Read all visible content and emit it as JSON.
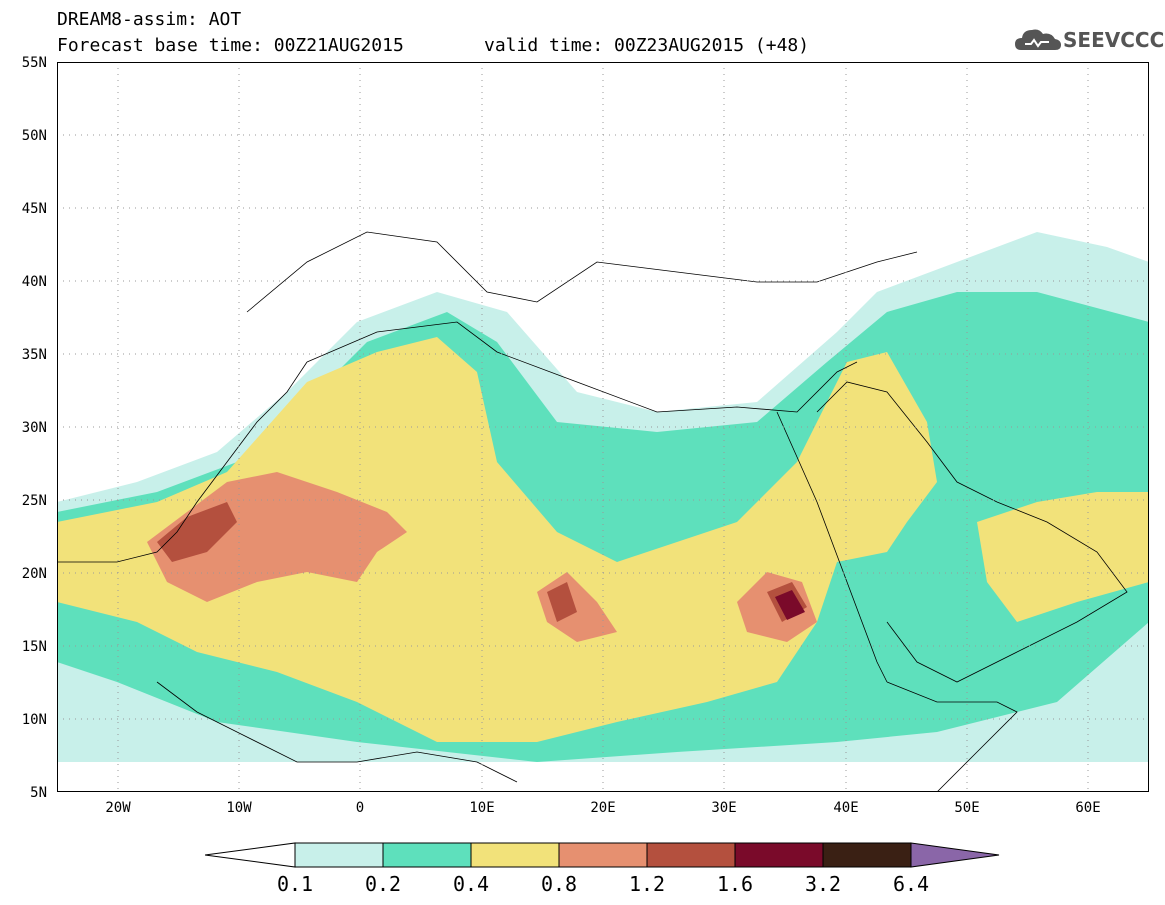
{
  "title": {
    "line1": "DREAM8-assim: AOT",
    "line2": "Forecast base time: 00Z21AUG2015",
    "line3": "valid time: 00Z23AUG2015 (+48)"
  },
  "logo": {
    "text": "SEEVCCC",
    "icon": "cloud-icon"
  },
  "axes": {
    "lat_labels": [
      "55N",
      "50N",
      "45N",
      "40N",
      "35N",
      "30N",
      "25N",
      "20N",
      "15N",
      "10N",
      "5N"
    ],
    "lon_labels": [
      "20W",
      "10W",
      "0",
      "10E",
      "20E",
      "30E",
      "40E",
      "50E",
      "60E"
    ],
    "lat_range": [
      5,
      55
    ],
    "lon_range": [
      -25,
      65
    ]
  },
  "legend": {
    "levels": [
      "0.1",
      "0.2",
      "0.4",
      "0.8",
      "1.2",
      "1.6",
      "3.2",
      "6.4"
    ],
    "colors": [
      "#c8f0ea",
      "#5ee0bc",
      "#f2e27a",
      "#e69070",
      "#b4503e",
      "#7a0a2a",
      "#3a2014",
      "#8a66a8"
    ]
  },
  "colors": {
    "land": "#ffffff",
    "border": "#000000"
  }
}
